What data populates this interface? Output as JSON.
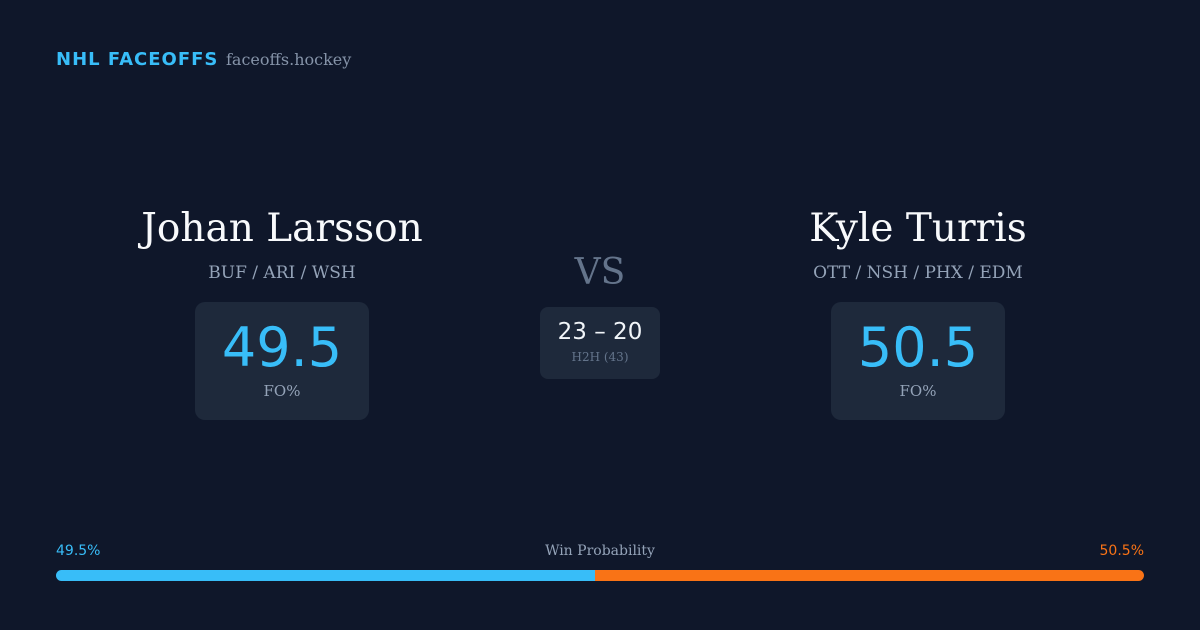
{
  "header": {
    "brand": "NHL FACEOFFS",
    "site": "faceoffs.hockey"
  },
  "players": [
    {
      "name": "Johan Larsson",
      "teams": "BUF / ARI / WSH",
      "fo_pct": 49.5,
      "fo_label": "FO%"
    },
    {
      "name": "Kyle Turris",
      "teams": "OTT / NSH / PHX / EDM",
      "fo_pct": 50.5,
      "fo_label": "FO%"
    }
  ],
  "versus": {
    "label": "VS",
    "h2h_score": "23 – 20",
    "h2h_label": "H2H (43)"
  },
  "win_probability": {
    "title": "Win Probability",
    "left": {
      "value": 49.5,
      "label": "49.5%",
      "color": "#38bdf8"
    },
    "right": {
      "value": 50.5,
      "label": "50.5%",
      "color": "#f97316"
    }
  }
}
